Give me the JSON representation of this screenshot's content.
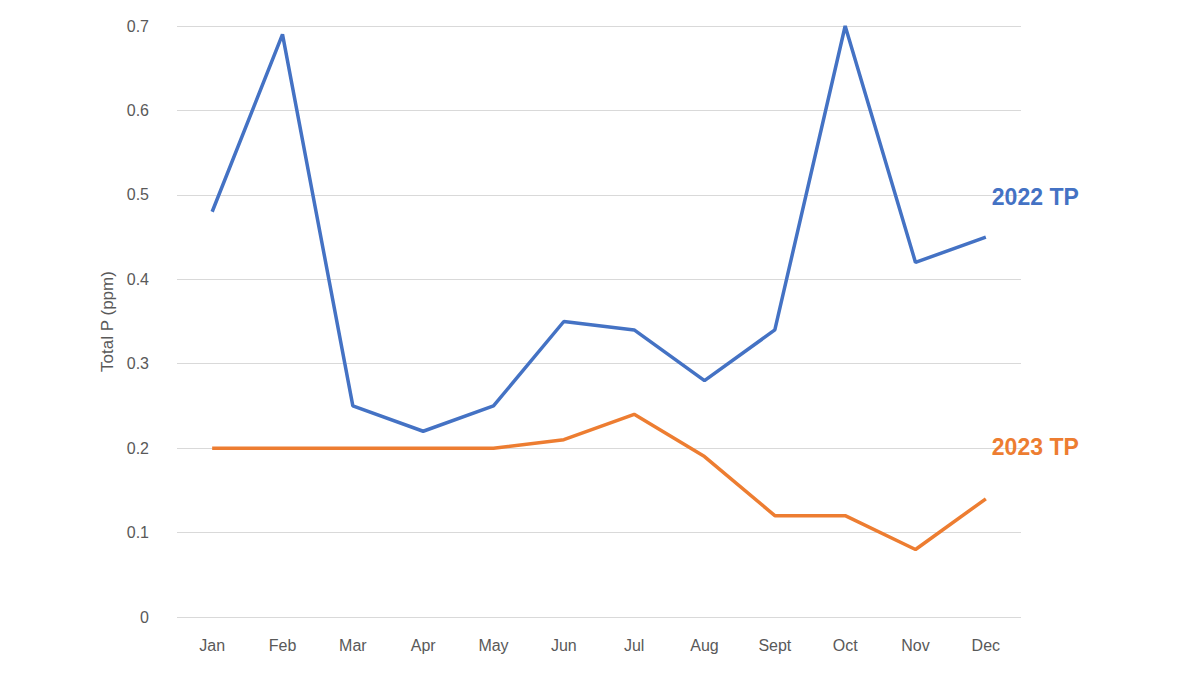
{
  "chart_data": {
    "type": "line",
    "y_label": "Total P (ppm)",
    "categories": [
      "Jan",
      "Feb",
      "Mar",
      "Apr",
      "May",
      "Jun",
      "Jul",
      "Aug",
      "Sept",
      "Oct",
      "Nov",
      "Dec"
    ],
    "series": [
      {
        "name": "2022 TP",
        "color": "#4472c4",
        "values": [
          0.48,
          0.69,
          0.25,
          0.22,
          0.25,
          0.35,
          0.34,
          0.28,
          0.34,
          0.7,
          0.42,
          0.45
        ]
      },
      {
        "name": "2023 TP",
        "color": "#ed7d31",
        "values": [
          0.2,
          0.2,
          0.2,
          0.2,
          0.2,
          0.21,
          0.24,
          0.19,
          0.12,
          0.12,
          0.08,
          0.14
        ]
      }
    ],
    "ylim": [
      0,
      0.7
    ],
    "yticks": [
      0,
      0.1,
      0.2,
      0.3,
      0.4,
      0.5,
      0.6,
      0.7
    ],
    "grid": true
  }
}
